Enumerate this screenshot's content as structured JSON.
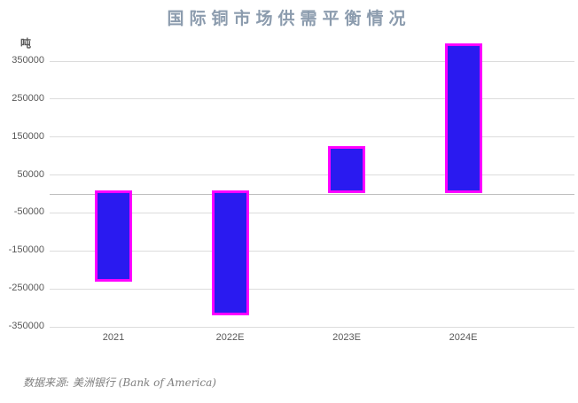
{
  "title": "国际铜市场供需平衡情况",
  "unit_label": "吨",
  "source_note": "数据来源: 美洲银行 (Bank of America)",
  "colors": {
    "bar_fill": "#2a1af0",
    "bar_border": "#ff00ff",
    "title_text": "#8c9cae",
    "axis_text": "#595959",
    "gridline": "#dcdcdc",
    "zero_line": "#bfbfbf",
    "source_text": "#7f7f7f"
  },
  "chart_data": {
    "type": "bar",
    "title": "国际铜市场供需平衡情况",
    "categories": [
      "2021",
      "2022E",
      "2023E",
      "2024E"
    ],
    "values": [
      -230000,
      -320000,
      120000,
      390000
    ],
    "xlabel": "",
    "ylabel": "吨",
    "ylim": [
      -350000,
      400000
    ],
    "yticks": [
      350000,
      250000,
      150000,
      50000,
      -50000,
      -150000,
      -250000,
      -350000
    ],
    "ytick_interval": 100000,
    "grid": true,
    "legend_position": "none",
    "source": "数据来源: 美洲银行 (Bank of America)"
  }
}
